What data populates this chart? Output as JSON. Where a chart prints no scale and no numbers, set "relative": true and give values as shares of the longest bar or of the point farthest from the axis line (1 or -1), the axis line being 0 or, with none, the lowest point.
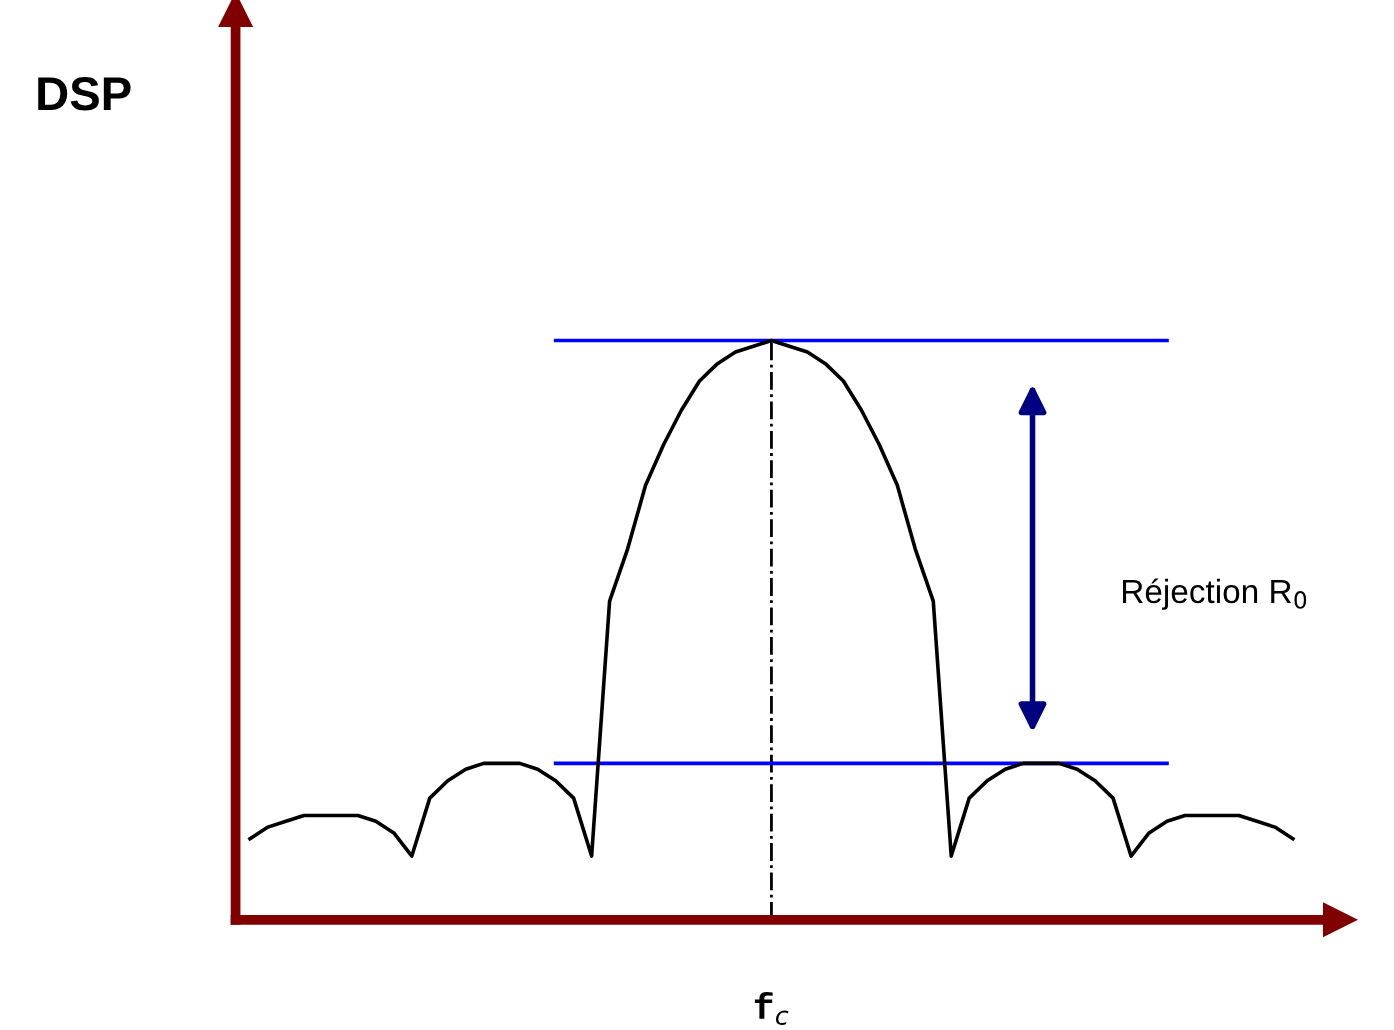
{
  "chart_data": {
    "type": "line",
    "relative": true,
    "xlabel": "f$_{c}$",
    "categories": [
      null,
      null,
      null,
      null,
      null,
      null,
      null,
      null,
      null,
      null,
      null,
      null,
      null,
      null,
      null,
      null,
      null,
      null,
      null,
      null,
      null,
      null,
      null,
      null,
      null,
      null,
      null,
      null,
      null,
      null,
      null,
      null,
      null,
      null,
      null,
      null,
      null,
      null,
      null,
      null,
      null,
      null,
      null,
      null,
      null,
      null,
      null,
      null,
      null,
      null,
      null,
      null,
      null,
      null,
      null,
      null,
      null,
      null,
      null
    ],
    "series": [
      {
        "color": "#000000",
        "values": [
          0.14,
          0.16,
          0.17,
          0.18,
          0.18,
          0.18,
          0.18,
          0.17,
          0.15,
          0.11,
          0.21,
          0.24,
          0.26,
          0.27,
          0.27,
          0.27,
          0.26,
          0.24,
          0.21,
          0.11,
          0.55,
          0.64,
          0.75,
          0.82,
          0.88,
          0.93,
          0.96,
          0.98,
          0.99,
          1,
          0.99,
          0.98,
          0.96,
          0.93,
          0.88,
          0.82,
          0.75,
          0.64,
          0.55,
          0.11,
          0.21,
          0.24,
          0.26,
          0.27,
          0.27,
          0.27,
          0.26,
          0.24,
          0.21,
          0.11,
          0.15,
          0.17,
          0.18,
          0.18,
          0.18,
          0.18,
          0.17,
          0.16,
          0.14
        ]
      },
      {
        "color": "#0000ff",
        "values": [
          null,
          null,
          null,
          null,
          null,
          null,
          null,
          null,
          null,
          null,
          null,
          null,
          null,
          null,
          null,
          null,
          null,
          1,
          1,
          1,
          1,
          1,
          1,
          1,
          1,
          1,
          1,
          1,
          1,
          1,
          1,
          1,
          1,
          1,
          1,
          1,
          1,
          1,
          1,
          1,
          1,
          1,
          1,
          1,
          1,
          1,
          1,
          1,
          1,
          1,
          1,
          1,
          null,
          null,
          null,
          null,
          null,
          null,
          null
        ]
      },
      {
        "color": "#0000ff",
        "values": [
          null,
          null,
          null,
          null,
          null,
          null,
          null,
          null,
          null,
          null,
          null,
          null,
          null,
          null,
          null,
          null,
          null,
          0.27,
          0.27,
          0.27,
          0.27,
          0.27,
          0.27,
          0.27,
          0.27,
          0.27,
          0.27,
          0.27,
          0.27,
          0.27,
          0.27,
          0.27,
          0.27,
          0.27,
          0.27,
          0.27,
          0.27,
          0.27,
          0.27,
          0.27,
          0.27,
          0.27,
          0.27,
          0.27,
          0.27,
          0.27,
          0.27,
          0.27,
          0.27,
          0.27,
          0.27,
          0.27,
          null,
          null,
          null,
          null,
          null,
          null,
          null
        ]
      }
    ],
    "annotations": [
      "DSP",
      "Réjection R$_{0}$"
    ]
  }
}
